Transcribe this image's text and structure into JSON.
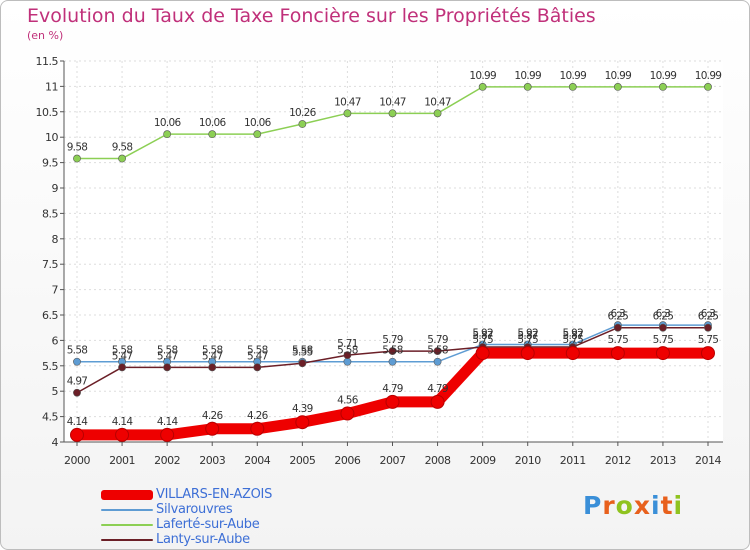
{
  "title": "Evolution du Taux de Taxe Foncière sur les Propriétés Bâties",
  "unit": "(en %)",
  "logo": {
    "text": "Proxiti",
    "letter_colors": [
      "#3a8fd8",
      "#e8601c",
      "#8fc31f",
      "#e8601c",
      "#3a8fd8",
      "#e8601c",
      "#8fc31f"
    ]
  },
  "chart_data": {
    "type": "line",
    "x": [
      "2000",
      "2001",
      "2002",
      "2003",
      "2004",
      "2005",
      "2006",
      "2007",
      "2008",
      "2009",
      "2010",
      "2011",
      "2012",
      "2013",
      "2014"
    ],
    "ylim": [
      4,
      11.5
    ],
    "y_ticks": [
      "4",
      "4.5",
      "5",
      "5.5",
      "6",
      "6.5",
      "7",
      "7.5",
      "8",
      "8.5",
      "9",
      "9.5",
      "10",
      "10.5",
      "11",
      "11.5"
    ],
    "grid": true,
    "legend_position": "bottom-left",
    "series": [
      {
        "name": "Laferté-sur-Aube",
        "color": "#8ccf54",
        "values": [
          9.58,
          9.58,
          10.06,
          10.06,
          10.06,
          10.26,
          10.47,
          10.47,
          10.47,
          10.99,
          10.99,
          10.99,
          10.99,
          10.99,
          10.99
        ],
        "labels": [
          "9.58",
          "9.58",
          "10.06",
          "10.06",
          "10.06",
          "10.26",
          "10.47",
          "10.47",
          "10.47",
          "10.99",
          "10.99",
          "10.99",
          "10.99",
          "10.99",
          "10.99"
        ]
      },
      {
        "name": "Silvarouvres",
        "color": "#5e9cd3",
        "values": [
          5.58,
          5.58,
          5.58,
          5.58,
          5.58,
          5.58,
          5.58,
          5.58,
          5.58,
          5.92,
          5.92,
          5.92,
          6.3,
          6.3,
          6.3
        ],
        "labels": [
          "5.58",
          "5.58",
          "5.58",
          "5.58",
          "5.58",
          "5.58",
          "5.58",
          "5.58",
          "5.58",
          "5.92",
          "5.92",
          "5.92",
          "6.3",
          "6.3",
          "6.3"
        ]
      },
      {
        "name": "Lanty-sur-Aube",
        "color": "#6b1f27",
        "values": [
          4.97,
          5.47,
          5.47,
          5.47,
          5.47,
          5.55,
          5.71,
          5.79,
          5.79,
          5.87,
          5.87,
          5.87,
          6.25,
          6.25,
          6.25
        ],
        "labels": [
          "4.97",
          "5.47",
          "5.47",
          "5.47",
          "5.47",
          "5.55",
          "5.71",
          "5.79",
          "5.79",
          "5.87",
          "5.87",
          "5.87",
          "6.25",
          "6.25",
          "6.25"
        ]
      },
      {
        "name": "VILLARS-EN-AZOIS",
        "color": "#ee0000",
        "values": [
          4.14,
          4.14,
          4.14,
          4.26,
          4.26,
          4.39,
          4.56,
          4.79,
          4.79,
          5.75,
          5.75,
          5.75,
          5.75,
          5.75,
          5.75
        ],
        "labels": [
          "4.14",
          "4.14",
          "4.14",
          "4.26",
          "4.26",
          "4.39",
          "4.56",
          "4.79",
          "4.79",
          "5.75",
          "5.75",
          "5.75",
          "5.75",
          "5.75",
          "5.75"
        ]
      }
    ],
    "legend_order": [
      "VILLARS-EN-AZOIS",
      "Silvarouvres",
      "Laferté-sur-Aube",
      "Lanty-sur-Aube"
    ]
  }
}
